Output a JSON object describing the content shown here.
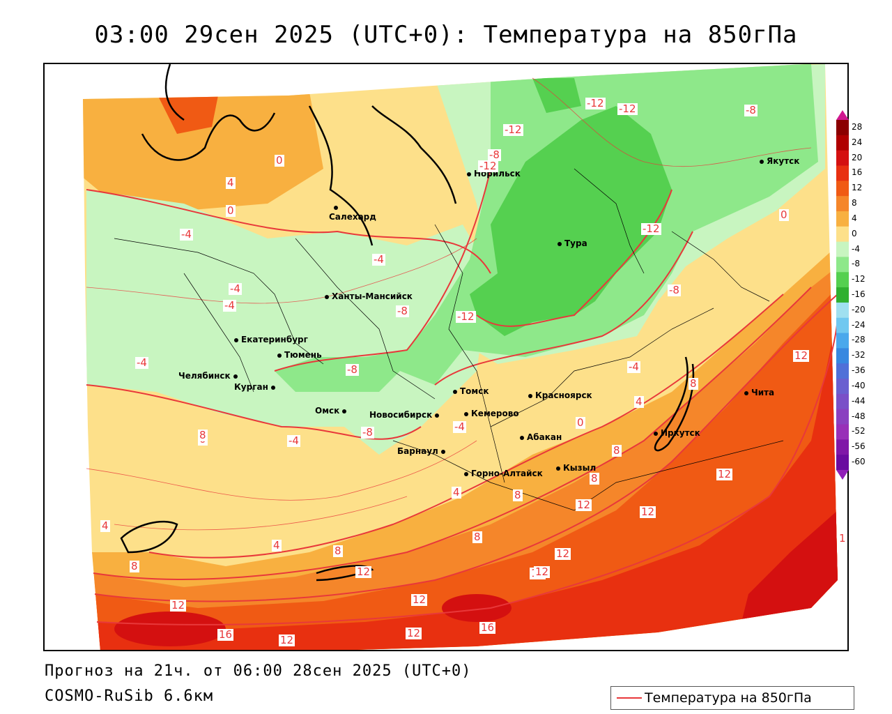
{
  "title": "03:00 29сен 2025 (UTC+0): Температура на 850гПа",
  "footer": {
    "forecast": "Прогноз на 21ч. от 06:00 28сен 2025 (UTC+0)",
    "model": "COSMO-RuSib 6.6км"
  },
  "legend": {
    "label": "Температура на 850гПа",
    "line_color": "#e8383a"
  },
  "colorbar": {
    "ticks": [
      "28",
      "24",
      "20",
      "16",
      "12",
      "8",
      "4",
      "0",
      "-4",
      "-8",
      "-12",
      "-16",
      "-20",
      "-24",
      "-28",
      "-32",
      "-36",
      "-40",
      "-44",
      "-48",
      "-52",
      "-56",
      "-60"
    ],
    "colors": [
      "#8b0000",
      "#b00000",
      "#d41010",
      "#e83010",
      "#f05a14",
      "#f5862a",
      "#f8b040",
      "#fde08a",
      "#c8f5c0",
      "#8ee88a",
      "#55d050",
      "#30b030",
      "#a0e0f0",
      "#70c8f0",
      "#4aa8ec",
      "#3888e0",
      "#5070d8",
      "#6a60d0",
      "#7a50c8",
      "#8a40c0",
      "#9830b8",
      "#8018a8",
      "#6a0ca0"
    ]
  },
  "cities": [
    {
      "name": "Якутск"
    },
    {
      "name": "Норильск"
    },
    {
      "name": "Салехард"
    },
    {
      "name": "Тура"
    },
    {
      "name": "Ханты-Мансийск"
    },
    {
      "name": "Екатеринбург"
    },
    {
      "name": "Тюмень"
    },
    {
      "name": "Челябинск"
    },
    {
      "name": "Курган"
    },
    {
      "name": "Омск"
    },
    {
      "name": "Новосибирск"
    },
    {
      "name": "Томск"
    },
    {
      "name": "Кемерово"
    },
    {
      "name": "Красноярск"
    },
    {
      "name": "Барнаул"
    },
    {
      "name": "Абакан"
    },
    {
      "name": "Горно-Алтайск"
    },
    {
      "name": "Кызыл"
    },
    {
      "name": "Иркутск"
    },
    {
      "name": "Чита"
    }
  ],
  "contour_labels": [
    "0",
    "4",
    "0",
    "-4",
    "-4",
    "-4",
    "-4",
    "-4",
    "0",
    "-4",
    "-8",
    "-8",
    "-8",
    "-12",
    "-8",
    "-12",
    "-12",
    "-12",
    "-12",
    "-12",
    "-8",
    "-8",
    "-4",
    "0",
    "4",
    "8",
    "-4",
    "0",
    "4",
    "8",
    "8",
    "12",
    "12",
    "8",
    "12",
    "12",
    "12",
    "12",
    "8",
    "4",
    "8",
    "8",
    "12",
    "12",
    "12",
    "16",
    "12",
    "12",
    "16",
    "12",
    "8",
    "1",
    "4",
    "0",
    "-4"
  ]
}
